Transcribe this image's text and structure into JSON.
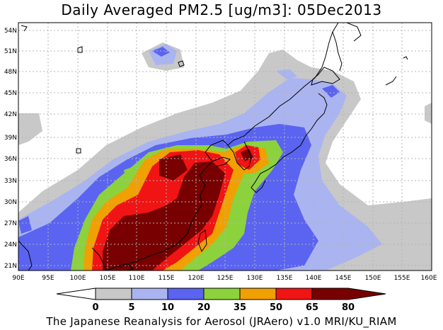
{
  "title": "Daily Averaged PM2.5 [ug/m3]: 05Dec2013",
  "credit": "The Japanese Reanalysis for Aerosol (JRAero) v1.0 MRI/KU_RIAM",
  "lat_labels": [
    "54N",
    "51N",
    "48N",
    "45N",
    "42N",
    "39N",
    "36N",
    "33N",
    "30N",
    "27N",
    "24N",
    "21N"
  ],
  "lon_labels": [
    "90E",
    "95E",
    "100E",
    "105E",
    "110E",
    "115E",
    "120E",
    "125E",
    "130E",
    "135E",
    "140E",
    "145E",
    "150E",
    "155E",
    "160E"
  ],
  "colorbar": {
    "levels": [
      "0",
      "5",
      "10",
      "20",
      "35",
      "50",
      "65",
      "80"
    ],
    "colors": [
      "#ffffff",
      "#c8c8c8",
      "#aab4f0",
      "#5a64f0",
      "#8cd23c",
      "#f0a000",
      "#f01414",
      "#780000"
    ]
  }
}
